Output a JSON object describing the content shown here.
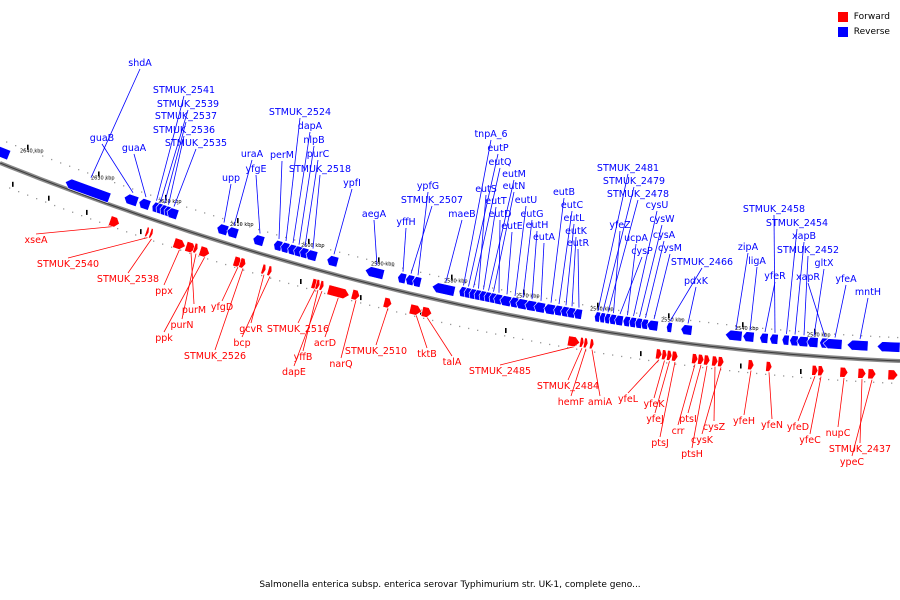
{
  "legend": {
    "forward_label": "Forward",
    "reverse_label": "Reverse",
    "forward_color": "#ff0000",
    "reverse_color": "#0000ff"
  },
  "caption": "Salmonella enterica subsp. enterica serovar Typhimurium str. UK-1, complete geno...",
  "scale_labels": [
    "2640 kbp",
    "2630 kbp",
    "2620 kbp",
    "2610 kbp",
    "2600 kbp",
    "2590 kbp",
    "2580 kbp",
    "2570 kbp",
    "2560 kbp",
    "2550 kbp",
    "2540 kbp",
    "2530 kbp"
  ],
  "reverse_genes": [
    "shdA",
    "guaB",
    "guaA",
    "STMUK_2541",
    "STMUK_2539",
    "STMUK_2537",
    "STMUK_2536",
    "STMUK_2535",
    "upp",
    "uraA",
    "yfgE",
    "perM",
    "STMUK_2524",
    "dapA",
    "nlpB",
    "purC",
    "STMUK_2518",
    "ypfI",
    "aegA",
    "yffH",
    "STMUK_2507",
    "ypfG",
    "maeB",
    "tnpA_6",
    "eutP",
    "eutQ",
    "eutS",
    "eutT",
    "eutM",
    "eutN",
    "eutD",
    "eutE",
    "eutU",
    "eutG",
    "eutH",
    "eutA",
    "eutB",
    "eutC",
    "eutL",
    "eutK",
    "eutR",
    "STMUK_2481",
    "STMUK_2479",
    "STMUK_2478",
    "yfeZ",
    "cysP",
    "ucpA",
    "cysU",
    "cysW",
    "cysA",
    "cysM",
    "STMUK_2466",
    "pdxK",
    "zipA",
    "ligA",
    "yfeR",
    "STMUK_2458",
    "STMUK_2454",
    "xapB",
    "STMUK_2452",
    "gltX",
    "xapR",
    "yfeA",
    "mntH"
  ],
  "forward_genes": [
    "xseA",
    "STMUK_2540",
    "STMUK_2538",
    "ppx",
    "purM",
    "purN",
    "ppk",
    "yfgD",
    "STMUK_2526",
    "gcvR",
    "bcp",
    "STMUK_2516",
    "yffB",
    "dapE",
    "acrD",
    "narQ",
    "STMUK_2510",
    "tktB",
    "talA",
    "STMUK_2485",
    "STMUK_2484",
    "hemF",
    "amiA",
    "yfeL",
    "yfeK",
    "yfeJ",
    "ptsJ",
    "crr",
    "ptsI",
    "ptsH",
    "cysZ",
    "cysK",
    "yfeH",
    "yfeN",
    "yfeD",
    "yfeC",
    "nupC",
    "STMUK_2437",
    "ypeC"
  ]
}
